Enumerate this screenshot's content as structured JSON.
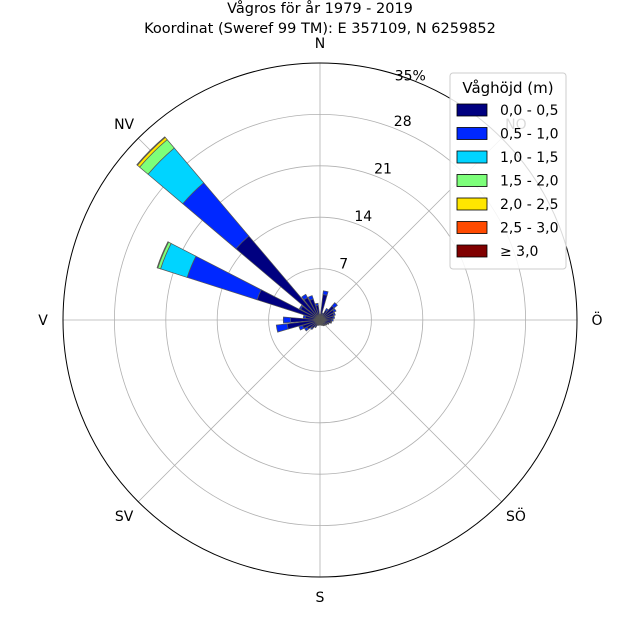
{
  "chart_data": {
    "type": "windrose",
    "title_line1": "Vågros för år 1979 - 2019",
    "title_line2": "Koordinat (Sweref 99 TM): E 357109, N 6259852",
    "directions": [
      "N",
      "NO",
      "Ö",
      "SÖ",
      "S",
      "SV",
      "V",
      "NV"
    ],
    "direction_angles_deg": [
      0,
      45,
      90,
      135,
      180,
      225,
      270,
      315
    ],
    "radial_ticks": [
      7,
      14,
      21,
      28
    ],
    "radial_max_label": "35%",
    "rlim": [
      0,
      35
    ],
    "grid": true,
    "legend": {
      "title": "Våghöjd (m)",
      "placement": "top-right",
      "bins": [
        "0,0 - 0,5",
        "0,5 - 1,0",
        "1,0 - 1,5",
        "1,5 - 2,0",
        "2,0 - 2,5",
        "2,5 - 3,0",
        "≥ 3,0"
      ],
      "colors": [
        "#000080",
        "#0028ff",
        "#00d4ff",
        "#7dff7a",
        "#ffe600",
        "#ff4a00",
        "#800000"
      ]
    },
    "sector_width_deg": 11.25,
    "sectors": [
      {
        "direction_deg": 0,
        "cumulative": [
          0.5,
          0.8,
          0.8,
          0.8,
          0.8,
          0.8,
          0.8
        ]
      },
      {
        "direction_deg": 11.25,
        "cumulative": [
          3.5,
          4.0,
          4.0,
          4.0,
          4.0,
          4.0,
          4.0
        ]
      },
      {
        "direction_deg": 22.5,
        "cumulative": [
          0.8,
          1.0,
          1.0,
          1.0,
          1.0,
          1.0,
          1.0
        ]
      },
      {
        "direction_deg": 33.75,
        "cumulative": [
          1.5,
          1.8,
          1.8,
          1.8,
          1.8,
          1.8,
          1.8
        ]
      },
      {
        "direction_deg": 45,
        "cumulative": [
          2.5,
          3.1,
          3.1,
          3.1,
          3.1,
          3.1,
          3.1
        ]
      },
      {
        "direction_deg": 56.25,
        "cumulative": [
          2.2,
          2.5,
          2.5,
          2.5,
          2.5,
          2.5,
          2.5
        ]
      },
      {
        "direction_deg": 67.5,
        "cumulative": [
          2.0,
          2.2,
          2.2,
          2.2,
          2.2,
          2.2,
          2.2
        ]
      },
      {
        "direction_deg": 78.75,
        "cumulative": [
          1.8,
          2.0,
          2.0,
          2.0,
          2.0,
          2.0,
          2.0
        ]
      },
      {
        "direction_deg": 90,
        "cumulative": [
          1.6,
          1.8,
          1.8,
          1.8,
          1.8,
          1.8,
          1.8
        ]
      },
      {
        "direction_deg": 101.25,
        "cumulative": [
          1.5,
          1.6,
          1.6,
          1.6,
          1.6,
          1.6,
          1.6
        ]
      },
      {
        "direction_deg": 112.5,
        "cumulative": [
          1.2,
          1.3,
          1.3,
          1.3,
          1.3,
          1.3,
          1.3
        ]
      },
      {
        "direction_deg": 123.75,
        "cumulative": [
          1.0,
          1.1,
          1.1,
          1.1,
          1.1,
          1.1,
          1.1
        ]
      },
      {
        "direction_deg": 135,
        "cumulative": [
          0.9,
          1.0,
          1.0,
          1.0,
          1.0,
          1.0,
          1.0
        ]
      },
      {
        "direction_deg": 146.25,
        "cumulative": [
          0.8,
          0.9,
          0.9,
          0.9,
          0.9,
          0.9,
          0.9
        ]
      },
      {
        "direction_deg": 157.5,
        "cumulative": [
          0.7,
          0.8,
          0.8,
          0.8,
          0.8,
          0.8,
          0.8
        ]
      },
      {
        "direction_deg": 168.75,
        "cumulative": [
          0.6,
          0.7,
          0.7,
          0.7,
          0.7,
          0.7,
          0.7
        ]
      },
      {
        "direction_deg": 180,
        "cumulative": [
          0.6,
          0.7,
          0.7,
          0.7,
          0.7,
          0.7,
          0.7
        ]
      },
      {
        "direction_deg": 191.25,
        "cumulative": [
          0.6,
          0.7,
          0.7,
          0.7,
          0.7,
          0.7,
          0.7
        ]
      },
      {
        "direction_deg": 202.5,
        "cumulative": [
          0.7,
          0.8,
          0.8,
          0.8,
          0.8,
          0.8,
          0.8
        ]
      },
      {
        "direction_deg": 213.75,
        "cumulative": [
          1.0,
          1.2,
          1.2,
          1.2,
          1.2,
          1.2,
          1.2
        ]
      },
      {
        "direction_deg": 225,
        "cumulative": [
          1.5,
          1.7,
          1.7,
          1.7,
          1.7,
          1.7,
          1.7
        ]
      },
      {
        "direction_deg": 236.25,
        "cumulative": [
          2.0,
          2.4,
          2.4,
          2.4,
          2.4,
          2.4,
          2.4
        ]
      },
      {
        "direction_deg": 247.5,
        "cumulative": [
          2.5,
          3.0,
          3.0,
          3.0,
          3.0,
          3.0,
          3.0
        ]
      },
      {
        "direction_deg": 258.75,
        "cumulative": [
          4.5,
          6.0,
          6.0,
          6.0,
          6.0,
          6.0,
          6.0
        ]
      },
      {
        "direction_deg": 270,
        "cumulative": [
          4.0,
          5.0,
          5.0,
          5.0,
          5.0,
          5.0,
          5.0
        ]
      },
      {
        "direction_deg": 281.25,
        "cumulative": [
          2.0,
          2.3,
          2.3,
          2.3,
          2.3,
          2.3,
          2.3
        ]
      },
      {
        "direction_deg": 292.5,
        "cumulative": [
          9.0,
          19.0,
          22.8,
          23.2,
          23.3,
          23.3,
          23.3
        ]
      },
      {
        "direction_deg": 303.75,
        "cumulative": [
          3.0,
          3.2,
          3.2,
          3.2,
          3.2,
          3.2,
          3.2
        ]
      },
      {
        "direction_deg": 315,
        "cumulative": [
          15.0,
          24.5,
          30.7,
          32.2,
          32.6,
          32.7,
          32.7
        ]
      },
      {
        "direction_deg": 326.25,
        "cumulative": [
          3.5,
          4.0,
          4.0,
          4.0,
          4.0,
          4.0,
          4.0
        ]
      },
      {
        "direction_deg": 337.5,
        "cumulative": [
          3.0,
          3.5,
          3.5,
          3.5,
          3.5,
          3.5,
          3.5
        ]
      },
      {
        "direction_deg": 348.75,
        "cumulative": [
          2.0,
          2.3,
          2.3,
          2.3,
          2.3,
          2.3,
          2.3
        ]
      }
    ]
  }
}
